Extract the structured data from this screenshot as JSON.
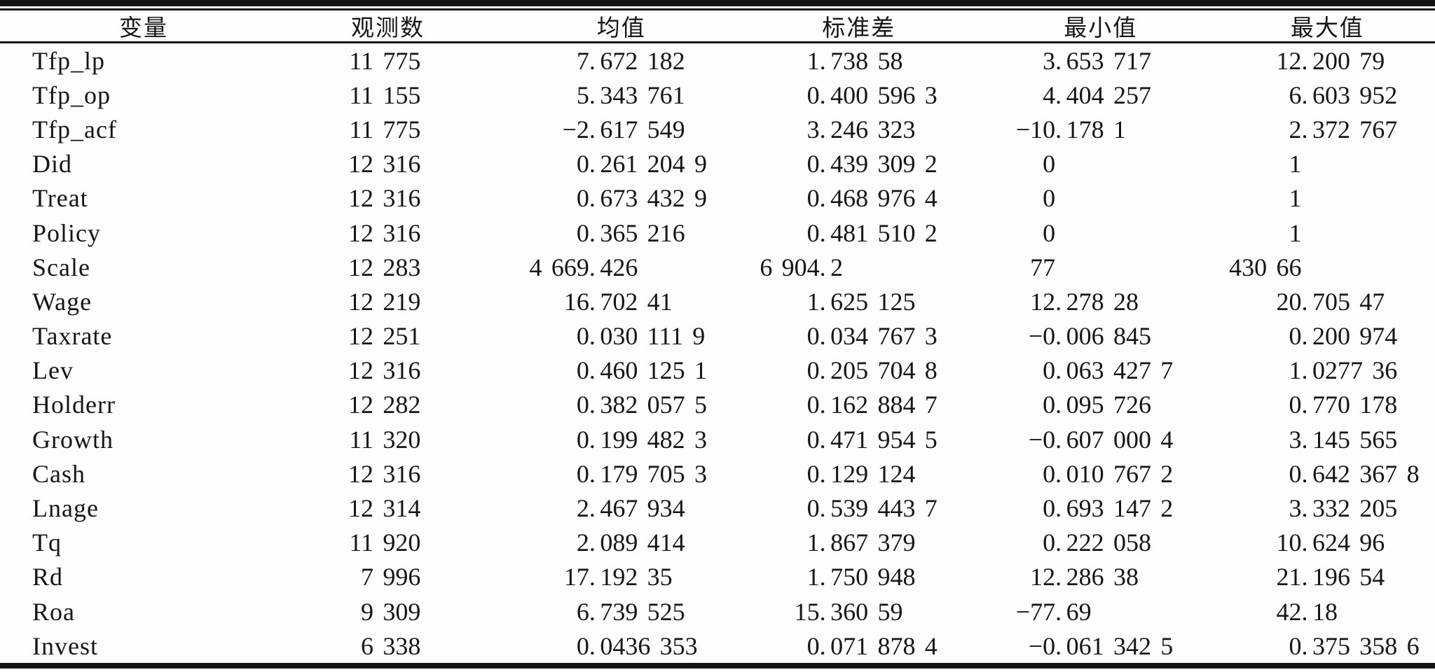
{
  "table_title": "descriptive-statistics-table",
  "chart_data": {
    "type": "table",
    "columns": [
      "变量",
      "观测数",
      "均值",
      "标准差",
      "最小值",
      "最大值"
    ],
    "rows": [
      [
        "Tfp_lp",
        "11 775",
        "7.672 182",
        "1.738 58",
        "3.653 717",
        "12.200 79"
      ],
      [
        "Tfp_op",
        "11 155",
        "5.343 761",
        "0.400 596 3",
        "4.404 257",
        "6.603 952"
      ],
      [
        "Tfp_acf",
        "11 775",
        "−2.617 549",
        "3.246 323",
        "−10.178 1",
        "2.372 767"
      ],
      [
        "Did",
        "12 316",
        "0.261 204 9",
        "0.439 309 2",
        "0",
        "1"
      ],
      [
        "Treat",
        "12 316",
        "0.673 432 9",
        "0.468 976 4",
        "0",
        "1"
      ],
      [
        "Policy",
        "12 316",
        "0.365 216",
        "0.481 510 2",
        "0",
        "1"
      ],
      [
        "Scale",
        "12 283",
        "4 669.426",
        "6 904.2",
        "77",
        "430 66"
      ],
      [
        "Wage",
        "12 219",
        "16.702 41",
        "1.625 125",
        "12.278 28",
        "20.705 47"
      ],
      [
        "Taxrate",
        "12 251",
        "0.030 111 9",
        "0.034 767 3",
        "−0.006 845",
        "0.200 974"
      ],
      [
        "Lev",
        "12 316",
        "0.460 125 1",
        "0.205 704 8",
        "0.063 427 7",
        "1.0277 36"
      ],
      [
        "Holderr",
        "12 282",
        "0.382 057 5",
        "0.162 884 7",
        "0.095 726",
        "0.770 178"
      ],
      [
        "Growth",
        "11 320",
        "0.199 482 3",
        "0.471 954 5",
        "−0.607 000 4",
        "3.145 565"
      ],
      [
        "Cash",
        "12 316",
        "0.179 705 3",
        "0.129 124",
        "0.010 767 2",
        "0.642 367 8"
      ],
      [
        "Lnage",
        "12 314",
        "2.467 934",
        "0.539 443 7",
        "0.693 147 2",
        "3.332 205"
      ],
      [
        "Tq",
        "11 920",
        "2.089 414",
        "1.867 379",
        "0.222 058",
        "10.624 96"
      ],
      [
        "Rd",
        "7 996",
        "17.192 35",
        "1.750 948",
        "12.286 38",
        "21.196 54"
      ],
      [
        "Roa",
        "9 309",
        "6.739 525",
        "15.360 59",
        "−77.69",
        "42.18"
      ],
      [
        "Invest",
        "6 338",
        "0.0436 353",
        "0.071 878 4",
        "−0.061 342 5",
        "0.375 358 6"
      ]
    ]
  },
  "colors": {
    "rule": "#141414",
    "text": "#161616",
    "background": "#fdfdfd"
  }
}
